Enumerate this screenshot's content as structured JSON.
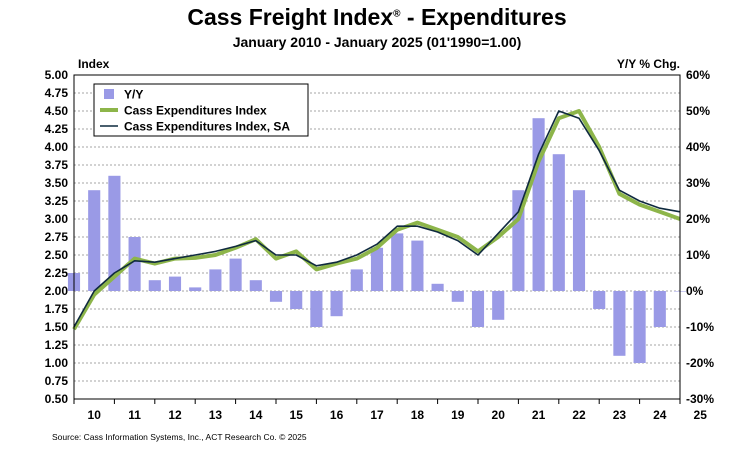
{
  "title": "Cass Freight Index",
  "title_mark": "®",
  "title_suffix": " - Expenditures",
  "subtitle": "January 2010 - January 2025 (01'1990=1.00)",
  "source": "Source: Cass Information Systems, Inc., ACT Research Co. © 2025",
  "colors": {
    "yoy": "#9a9ae6",
    "index": "#8db54a",
    "sa": "#0f2a3f",
    "grid": "#888888"
  },
  "chart_data": {
    "type": "bar",
    "title": "Cass Freight Index® - Expenditures",
    "subtitle": "January 2010 - January 2025 (01'1990=1.00)",
    "ylabel_left": "Index",
    "ylabel_right": "Y/Y % Chg.",
    "left_axis": {
      "range": [
        0.5,
        5.0
      ],
      "ticks": [
        "5.00",
        "4.75",
        "4.50",
        "4.25",
        "4.00",
        "3.75",
        "3.50",
        "3.25",
        "3.00",
        "2.75",
        "2.50",
        "2.25",
        "2.00",
        "1.75",
        "1.50",
        "1.25",
        "1.00",
        "0.75",
        "0.50"
      ]
    },
    "right_axis": {
      "range": [
        -30,
        60
      ],
      "ticks": [
        "60%",
        "50%",
        "40%",
        "30%",
        "20%",
        "10%",
        "0%",
        "-10%",
        "-20%",
        "-30%"
      ]
    },
    "x_axis": {
      "range": [
        2010,
        2025
      ],
      "ticks": [
        "10",
        "11",
        "12",
        "13",
        "14",
        "15",
        "16",
        "17",
        "18",
        "19",
        "20",
        "21",
        "22",
        "23",
        "24",
        "25"
      ]
    },
    "grid": true,
    "legend_placement": "top-left",
    "legend": [
      "Y/Y",
      "Cass Expenditures Index",
      "Cass Expenditures Index, SA"
    ],
    "series": [
      {
        "name": "Y/Y",
        "type": "bar",
        "color": "#9a9ae6",
        "x": [
          2010,
          2010.5,
          2011,
          2011.5,
          2012,
          2012.5,
          2013,
          2013.5,
          2014,
          2014.5,
          2015,
          2015.5,
          2016,
          2016.5,
          2017,
          2017.5,
          2018,
          2018.5,
          2019,
          2019.5,
          2020,
          2020.5,
          2021,
          2021.5,
          2022,
          2022.5,
          2023,
          2023.5,
          2024,
          2024.5,
          2025
        ],
        "values": [
          5,
          28,
          32,
          15,
          3,
          4,
          1,
          6,
          9,
          3,
          -3,
          -5,
          -10,
          -7,
          6,
          12,
          16,
          14,
          2,
          -3,
          -10,
          -8,
          28,
          48,
          38,
          28,
          -5,
          -18,
          -20,
          -10,
          0
        ]
      },
      {
        "name": "Cass Expenditures Index",
        "type": "line",
        "color": "#8db54a",
        "x": [
          2010,
          2010.5,
          2011,
          2011.5,
          2012,
          2012.5,
          2013,
          2013.5,
          2014,
          2014.5,
          2015,
          2015.5,
          2016,
          2016.5,
          2017,
          2017.5,
          2018,
          2018.5,
          2019,
          2019.5,
          2020,
          2020.5,
          2021,
          2021.5,
          2022,
          2022.5,
          2023,
          2023.5,
          2024,
          2024.5,
          2025
        ],
        "values": [
          1.47,
          1.95,
          2.2,
          2.45,
          2.38,
          2.45,
          2.46,
          2.5,
          2.6,
          2.72,
          2.45,
          2.55,
          2.3,
          2.38,
          2.45,
          2.6,
          2.85,
          2.95,
          2.85,
          2.75,
          2.55,
          2.75,
          3.0,
          3.8,
          4.4,
          4.5,
          4.0,
          3.35,
          3.2,
          3.1,
          3.0
        ]
      },
      {
        "name": "Cass Expenditures Index, SA",
        "type": "line",
        "color": "#0f2a3f",
        "x": [
          2010,
          2010.5,
          2011,
          2011.5,
          2012,
          2012.5,
          2013,
          2013.5,
          2014,
          2014.5,
          2015,
          2015.5,
          2016,
          2016.5,
          2017,
          2017.5,
          2018,
          2018.5,
          2019,
          2019.5,
          2020,
          2020.5,
          2021,
          2021.5,
          2022,
          2022.5,
          2023,
          2023.5,
          2024,
          2024.5,
          2025
        ],
        "values": [
          1.5,
          2.0,
          2.25,
          2.42,
          2.4,
          2.45,
          2.5,
          2.55,
          2.62,
          2.7,
          2.5,
          2.5,
          2.35,
          2.4,
          2.5,
          2.65,
          2.9,
          2.9,
          2.82,
          2.7,
          2.5,
          2.8,
          3.1,
          3.9,
          4.5,
          4.4,
          3.95,
          3.4,
          3.25,
          3.15,
          3.1
        ]
      }
    ]
  }
}
